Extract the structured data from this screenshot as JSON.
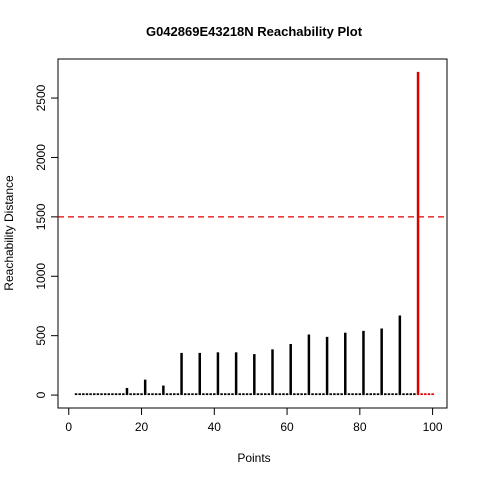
{
  "chart_data": {
    "type": "spike",
    "title": "G042869E43218N Reachability Plot",
    "xlabel": "Points",
    "ylabel": "Reachability Distance",
    "x": [
      1,
      2,
      3,
      4,
      5,
      6,
      7,
      8,
      9,
      10,
      11,
      12,
      13,
      14,
      15,
      16,
      17,
      18,
      19,
      20,
      21,
      22,
      23,
      24,
      25,
      26,
      27,
      28,
      29,
      30,
      31,
      32,
      33,
      34,
      35,
      36,
      37,
      38,
      39,
      40,
      41,
      42,
      43,
      44,
      45,
      46,
      47,
      48,
      49,
      50,
      51,
      52,
      53,
      54,
      55,
      56,
      57,
      58,
      59,
      60,
      61,
      62,
      63,
      64,
      65,
      66,
      67,
      68,
      69,
      70,
      71,
      72,
      73,
      74,
      75,
      76,
      77,
      78,
      79,
      80,
      81,
      82,
      83,
      84,
      85,
      86,
      87,
      88,
      89,
      90,
      91,
      92,
      93,
      94,
      95,
      96,
      97,
      98,
      99,
      100
    ],
    "series": [
      {
        "color": "#000000",
        "values": [
          null,
          15,
          15,
          15,
          15,
          15,
          15,
          15,
          15,
          15,
          15,
          15,
          15,
          15,
          15,
          60,
          15,
          15,
          15,
          15,
          130,
          15,
          15,
          15,
          15,
          80,
          15,
          15,
          15,
          15,
          355,
          15,
          15,
          15,
          15,
          355,
          15,
          15,
          15,
          15,
          360,
          15,
          15,
          15,
          15,
          360,
          15,
          15,
          15,
          15,
          345,
          15,
          15,
          15,
          15,
          385,
          15,
          15,
          15,
          15,
          430,
          15,
          15,
          15,
          15,
          510,
          15,
          15,
          15,
          15,
          490,
          15,
          15,
          15,
          15,
          525,
          15,
          15,
          15,
          15,
          540,
          15,
          15,
          15,
          15,
          560,
          15,
          15,
          15,
          15,
          670,
          15,
          15,
          15,
          15,
          null,
          null,
          null,
          null,
          null
        ]
      },
      {
        "color": "#dd0000",
        "values": [
          null,
          null,
          null,
          null,
          null,
          null,
          null,
          null,
          null,
          null,
          null,
          null,
          null,
          null,
          null,
          null,
          null,
          null,
          null,
          null,
          null,
          null,
          null,
          null,
          null,
          null,
          null,
          null,
          null,
          null,
          null,
          null,
          null,
          null,
          null,
          null,
          null,
          null,
          null,
          null,
          null,
          null,
          null,
          null,
          null,
          null,
          null,
          null,
          null,
          null,
          null,
          null,
          null,
          null,
          null,
          null,
          null,
          null,
          null,
          null,
          null,
          null,
          null,
          null,
          null,
          null,
          null,
          null,
          null,
          null,
          null,
          null,
          null,
          null,
          null,
          null,
          null,
          null,
          null,
          null,
          null,
          null,
          null,
          null,
          null,
          null,
          null,
          null,
          null,
          null,
          null,
          null,
          null,
          null,
          null,
          2720,
          15,
          15,
          15,
          15
        ]
      }
    ],
    "hline": {
      "value": 1500,
      "color": "#dd0000"
    },
    "xlim": [
      -2.96,
      103.96
    ],
    "xticks": [
      0,
      20,
      40,
      60,
      80,
      100
    ],
    "ylim": [
      -108.8,
      2828.8
    ],
    "yticks": [
      0,
      500,
      1000,
      1500,
      2000,
      2500
    ]
  }
}
